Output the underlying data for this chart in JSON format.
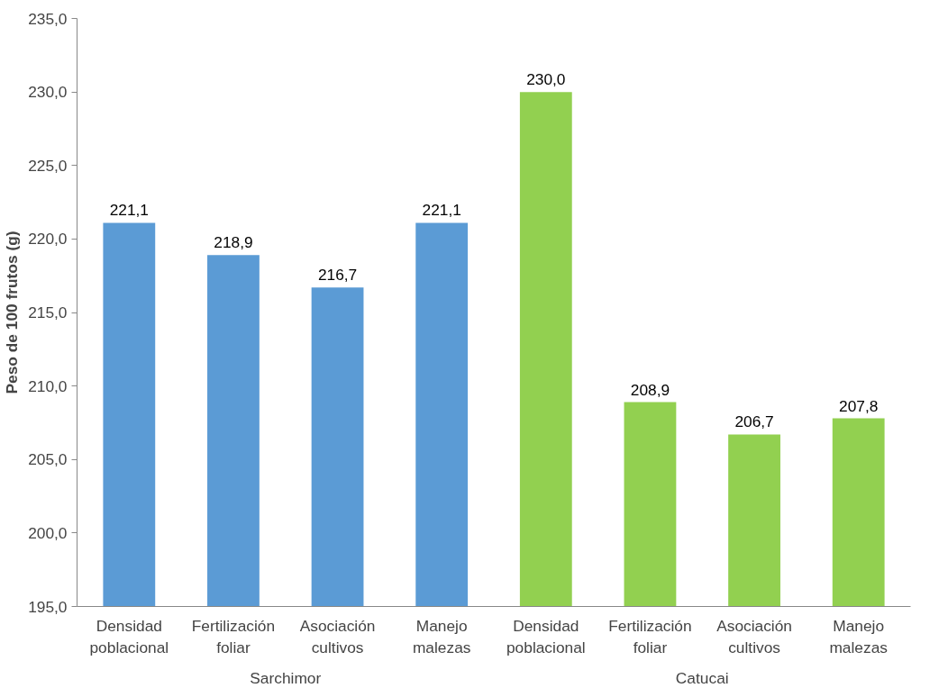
{
  "chart_data": {
    "type": "bar",
    "ylabel": "Peso de 100 frutos (g)",
    "categories": [
      "Densidad poblacional",
      "Fertilización foliar",
      "Asociación cultivos",
      "Manejo malezas",
      "Densidad poblacional",
      "Fertilización foliar",
      "Asociación cultivos",
      "Manejo malezas"
    ],
    "series": [
      {
        "color": "#5b9bd5",
        "values": [
          221.1,
          218.9,
          216.7,
          221.1,
          null,
          null,
          null,
          null
        ],
        "value_labels": [
          "221,1",
          "218,9",
          "216,7",
          "221,1",
          null,
          null,
          null,
          null
        ]
      },
      {
        "color": "#92d050",
        "values": [
          null,
          null,
          null,
          null,
          230.0,
          208.9,
          206.7,
          207.8
        ],
        "value_labels": [
          null,
          null,
          null,
          null,
          "230,0",
          "208,9",
          "206,7",
          "207,8"
        ]
      }
    ],
    "ylim": [
      195,
      235
    ],
    "yticks": [
      {
        "value": 195,
        "label": "195,0"
      },
      {
        "value": 200,
        "label": "200,0"
      },
      {
        "value": 205,
        "label": "205,0"
      },
      {
        "value": 210,
        "label": "210,0"
      },
      {
        "value": 215,
        "label": "215,0"
      },
      {
        "value": 220,
        "label": "220,0"
      },
      {
        "value": 225,
        "label": "225,0"
      },
      {
        "value": 230,
        "label": "230,0"
      },
      {
        "value": 235,
        "label": "235,0"
      }
    ],
    "annotations": [
      "Sarchimor",
      "Catucai"
    ],
    "grid": false
  }
}
